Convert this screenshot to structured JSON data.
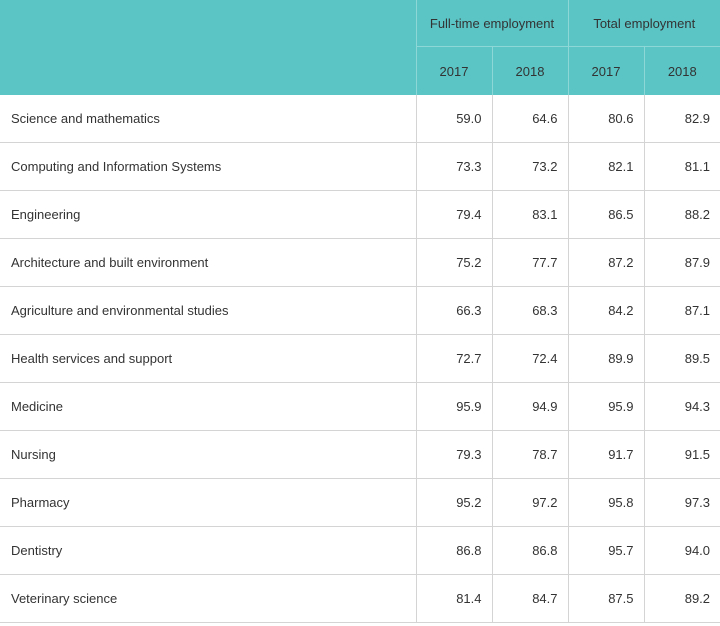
{
  "chart_data": {
    "type": "table",
    "column_groups": [
      "Full-time employment",
      "Total employment"
    ],
    "years": [
      "2017",
      "2018",
      "2017",
      "2018"
    ],
    "rows": [
      {
        "label": "Science and mathematics",
        "values": [
          "59.0",
          "64.6",
          "80.6",
          "82.9"
        ]
      },
      {
        "label": "Computing and Information Systems",
        "values": [
          "73.3",
          "73.2",
          "82.1",
          "81.1"
        ]
      },
      {
        "label": "Engineering",
        "values": [
          "79.4",
          "83.1",
          "86.5",
          "88.2"
        ]
      },
      {
        "label": "Architecture and built environment",
        "values": [
          "75.2",
          "77.7",
          "87.2",
          "87.9"
        ]
      },
      {
        "label": "Agriculture and environmental studies",
        "values": [
          "66.3",
          "68.3",
          "84.2",
          "87.1"
        ]
      },
      {
        "label": "Health services and support",
        "values": [
          "72.7",
          "72.4",
          "89.9",
          "89.5"
        ]
      },
      {
        "label": "Medicine",
        "values": [
          "95.9",
          "94.9",
          "95.9",
          "94.3"
        ]
      },
      {
        "label": "Nursing",
        "values": [
          "79.3",
          "78.7",
          "91.7",
          "91.5"
        ]
      },
      {
        "label": "Pharmacy",
        "values": [
          "95.2",
          "97.2",
          "95.8",
          "97.3"
        ]
      },
      {
        "label": "Dentistry",
        "values": [
          "86.8",
          "86.8",
          "95.7",
          "94.0"
        ]
      },
      {
        "label": "Veterinary science",
        "values": [
          "81.4",
          "84.7",
          "87.5",
          "89.2"
        ]
      }
    ]
  },
  "colors": {
    "header_background": "#5bc5c6",
    "text": "#333333",
    "grid_line": "#d4d4d4"
  }
}
